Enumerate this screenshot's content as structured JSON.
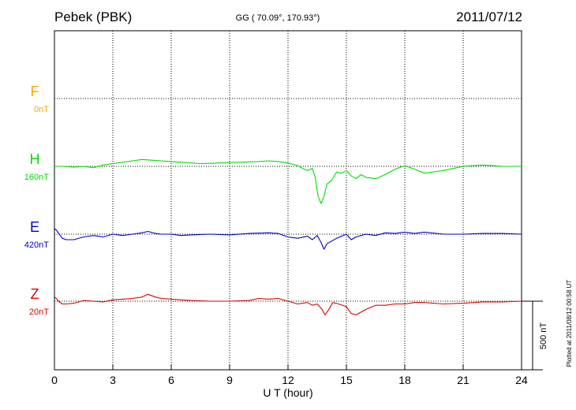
{
  "header": {
    "station": "Pebek (PBK)",
    "coords": "GG ( 70.09°, 170.93°)",
    "date": "2011/07/12"
  },
  "footer": {
    "plotted": "Plotted at 2011/08/12 00:58 UT",
    "scale_label": "500 nT"
  },
  "chart_data": {
    "type": "line",
    "title": "Pebek (PBK)",
    "xlabel": "U T (hour)",
    "ylabel": "",
    "xlim": [
      0,
      24
    ],
    "xticks": [
      0,
      3,
      6,
      9,
      12,
      15,
      18,
      21,
      24
    ],
    "grid": true,
    "scale_bar_nT": 500,
    "series": [
      {
        "name": "F",
        "baseline_label": "0nT",
        "color": "#ffa500",
        "row_nT": 0,
        "x": [],
        "y": []
      },
      {
        "name": "H",
        "baseline_label": "160nT",
        "color": "#00dd00",
        "row_nT": -500,
        "x": [
          0,
          0.5,
          1,
          1.5,
          2,
          2.5,
          3,
          3.5,
          4,
          4.5,
          5,
          5.5,
          6,
          6.5,
          7,
          7.5,
          8,
          8.5,
          9,
          9.5,
          10,
          10.5,
          11,
          11.5,
          12,
          12.25,
          12.5,
          12.75,
          13,
          13.25,
          13.4,
          13.55,
          13.7,
          13.85,
          14,
          14.25,
          14.5,
          14.75,
          15,
          15.25,
          15.5,
          15.75,
          16,
          16.5,
          17,
          17.5,
          18,
          18.5,
          19,
          19.5,
          20,
          20.5,
          21,
          21.5,
          22,
          22.5,
          23,
          23.5,
          24
        ],
        "y": [
          0,
          0,
          -5,
          0,
          -10,
          10,
          20,
          30,
          40,
          50,
          45,
          40,
          35,
          30,
          25,
          20,
          22,
          25,
          28,
          30,
          33,
          35,
          40,
          35,
          25,
          15,
          5,
          -15,
          -30,
          -15,
          -80,
          -220,
          -270,
          -220,
          -130,
          -100,
          -40,
          -50,
          -30,
          -70,
          -90,
          -60,
          -80,
          -90,
          -60,
          -20,
          5,
          -20,
          -50,
          -40,
          -30,
          -15,
          0,
          5,
          10,
          5,
          0,
          0,
          0
        ]
      },
      {
        "name": "E",
        "baseline_label": "420nT",
        "color": "#0000cc",
        "row_nT": -1000,
        "x": [
          0,
          0.1,
          0.2,
          0.4,
          0.6,
          1,
          1.5,
          2,
          2.5,
          3,
          3.5,
          4,
          4.5,
          4.8,
          5.2,
          5.5,
          6,
          6.5,
          7,
          8,
          9,
          10,
          11,
          11.5,
          12,
          12.5,
          13,
          13.25,
          13.5,
          13.7,
          13.85,
          14,
          14.25,
          14.5,
          15,
          15.25,
          15.5,
          16,
          16.5,
          17,
          17.5,
          18,
          18.5,
          19,
          20,
          21,
          22,
          23,
          24
        ],
        "y": [
          40,
          30,
          10,
          -30,
          -40,
          -40,
          -20,
          -10,
          -20,
          0,
          -10,
          0,
          10,
          20,
          5,
          0,
          0,
          -10,
          -5,
          0,
          -5,
          5,
          10,
          5,
          -20,
          -30,
          -15,
          -40,
          -10,
          -60,
          -110,
          -70,
          -50,
          -30,
          0,
          -40,
          -20,
          0,
          -10,
          10,
          5,
          15,
          5,
          15,
          0,
          0,
          5,
          5,
          0
        ]
      },
      {
        "name": "Z",
        "baseline_label": "20nT",
        "color": "#dd0000",
        "row_nT": -1500,
        "x": [
          0,
          0.1,
          0.2,
          0.4,
          0.6,
          1,
          1.5,
          2,
          2.5,
          3,
          3.5,
          4,
          4.5,
          4.8,
          5.2,
          5.5,
          6,
          6.5,
          7,
          8,
          9,
          10,
          10.5,
          11,
          11.5,
          12,
          12.5,
          13,
          13.25,
          13.5,
          13.75,
          13.9,
          14.1,
          14.3,
          14.6,
          15,
          15.25,
          15.5,
          16,
          16.5,
          17,
          17.5,
          18,
          18.5,
          19,
          20,
          21,
          22,
          23,
          24
        ],
        "y": [
          30,
          20,
          0,
          -20,
          -20,
          -15,
          5,
          0,
          -5,
          10,
          15,
          20,
          30,
          50,
          30,
          20,
          15,
          10,
          5,
          0,
          0,
          5,
          20,
          15,
          20,
          0,
          -20,
          -10,
          -30,
          -20,
          -60,
          -100,
          -60,
          -10,
          -20,
          -40,
          -90,
          -100,
          -60,
          -30,
          -30,
          -20,
          -20,
          -10,
          -10,
          -20,
          -15,
          -5,
          -5,
          0
        ]
      }
    ]
  }
}
